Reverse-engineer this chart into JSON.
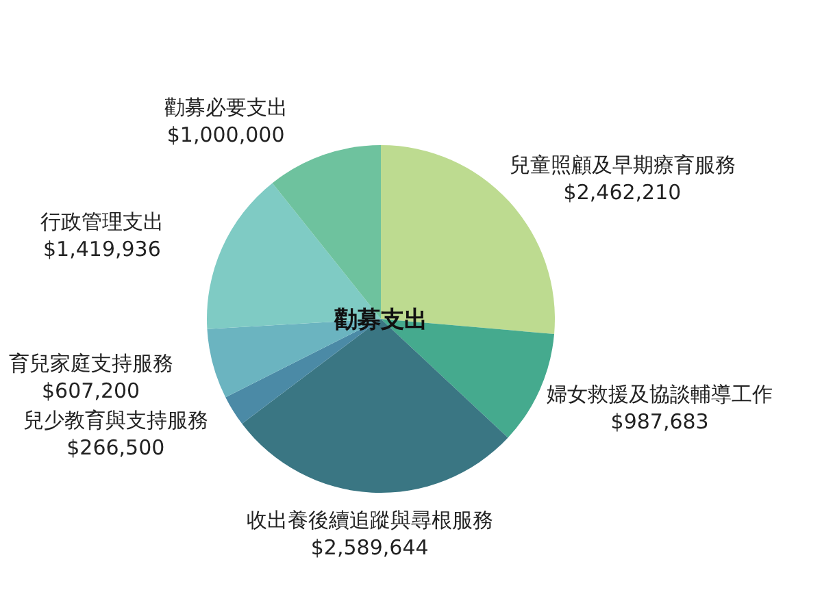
{
  "chart_data": {
    "type": "pie",
    "title": "勸募支出",
    "categories": [
      "兒童照顧及早期療育服務",
      "婦女救援及協談輔導工作",
      "收出養後續追蹤與尋根服務",
      "兒少教育與支持服務",
      "育兒家庭支持服務",
      "行政管理支出",
      "勸募必要支出"
    ],
    "values": [
      2462210,
      987683,
      2589644,
      266500,
      607200,
      1419936,
      1000000
    ],
    "value_labels": [
      "$2,462,210",
      "$987,683",
      "$2,589,644",
      "$266,500",
      "$607,200",
      "$1,419,936",
      "$1,000,000"
    ],
    "colors": [
      "#bddb90",
      "#45aa8e",
      "#3a7683",
      "#4b8aa6",
      "#6bb4c0",
      "#7fcbc4",
      "#6ec29e"
    ],
    "legend": false
  }
}
